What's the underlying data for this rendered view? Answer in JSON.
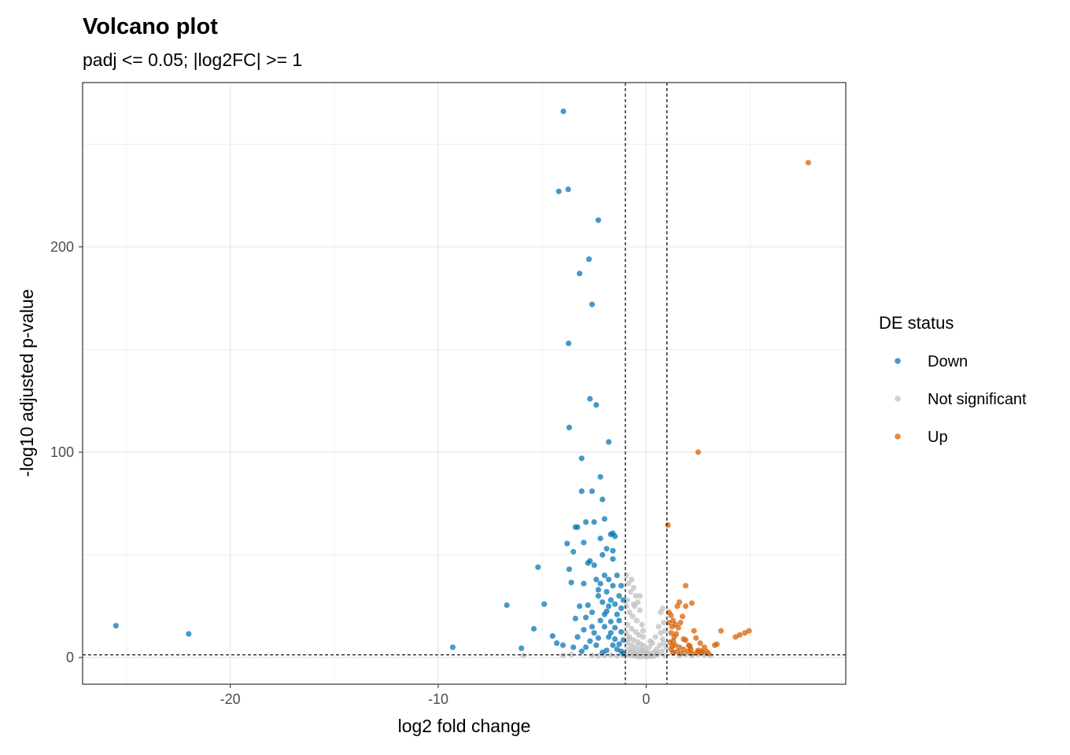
{
  "chart_data": {
    "type": "scatter",
    "title": "Volcano plot",
    "subtitle": "padj <= 0.05; |log2FC| >= 1",
    "xlabel": "log2 fold change",
    "ylabel": "-log10 adjusted p-value",
    "xlim": [
      -27.1,
      9.6
    ],
    "ylim": [
      -13,
      280
    ],
    "x_ticks": [
      -20,
      -10,
      0
    ],
    "x_tick_labels": [
      "-20",
      "-10",
      "0"
    ],
    "y_ticks": [
      0,
      100,
      200
    ],
    "y_tick_labels": [
      "0",
      "100",
      "200"
    ],
    "x_minor_gridlines": [
      -25,
      -15,
      -5,
      5
    ],
    "y_minor_gridlines": [
      50,
      150,
      250
    ],
    "grid": true,
    "reference_lines": {
      "vertical": [
        -1,
        1
      ],
      "horizontal": [
        1.3
      ],
      "style": "dashed",
      "color": "#000000"
    },
    "legend": {
      "title": "DE status",
      "position": "right",
      "entries": [
        {
          "label": "Down",
          "color": "#0072B2"
        },
        {
          "label": "Not significant",
          "color": "#BEBEBE"
        },
        {
          "label": "Up",
          "color": "#D55E00"
        }
      ]
    },
    "series": [
      {
        "name": "Down",
        "color": "#0072B2",
        "points": [
          [
            -25.5,
            15.5
          ],
          [
            -22.0,
            11.5
          ],
          [
            -9.3,
            5.0
          ],
          [
            -6.7,
            25.5
          ],
          [
            -6.0,
            4.5
          ],
          [
            -5.4,
            14.0
          ],
          [
            -5.2,
            44.0
          ],
          [
            -4.9,
            26.0
          ],
          [
            -4.5,
            10.5
          ],
          [
            -4.3,
            7.0
          ],
          [
            -3.98,
            266
          ],
          [
            -3.8,
            55.5
          ],
          [
            -3.7,
            43.0
          ],
          [
            -3.7,
            112
          ],
          [
            -3.73,
            153
          ],
          [
            -3.75,
            228
          ],
          [
            -4.2,
            227
          ],
          [
            -3.6,
            36.5
          ],
          [
            -3.5,
            51.5
          ],
          [
            -3.4,
            63.5
          ],
          [
            -3.3,
            63.5
          ],
          [
            -3.2,
            187
          ],
          [
            -3.1,
            97.0
          ],
          [
            -3.1,
            81.0
          ],
          [
            -3.0,
            56.0
          ],
          [
            -2.9,
            66.0
          ],
          [
            -2.8,
            46.0
          ],
          [
            -2.75,
            194
          ],
          [
            -2.7,
            126
          ],
          [
            -2.6,
            172
          ],
          [
            -2.6,
            81.0
          ],
          [
            -2.5,
            66.0
          ],
          [
            -2.4,
            123
          ],
          [
            -2.3,
            213
          ],
          [
            -2.2,
            88.0
          ],
          [
            -2.2,
            58.0
          ],
          [
            -2.1,
            77.0
          ],
          [
            -2.0,
            67.5
          ],
          [
            -1.9,
            53.0
          ],
          [
            -1.8,
            105
          ],
          [
            -1.7,
            60.0
          ],
          [
            -1.6,
            48.0
          ],
          [
            -1.6,
            60.5
          ],
          [
            -1.5,
            59.0
          ],
          [
            -3.0,
            36.0
          ],
          [
            -2.7,
            47.0
          ],
          [
            -2.5,
            45.0
          ],
          [
            -2.4,
            38.0
          ],
          [
            -2.3,
            30.0
          ],
          [
            -2.2,
            36.0
          ],
          [
            -2.0,
            40.0
          ],
          [
            -1.9,
            32.0
          ],
          [
            -1.8,
            38.0
          ],
          [
            -1.7,
            28.0
          ],
          [
            -1.6,
            35.0
          ],
          [
            -1.5,
            26.0
          ],
          [
            -1.3,
            30.0
          ],
          [
            -1.2,
            24.0
          ],
          [
            -1.1,
            28.0
          ],
          [
            -2.8,
            25.5
          ],
          [
            -2.6,
            22.0
          ],
          [
            -2.9,
            19.5
          ],
          [
            -3.2,
            25.0
          ],
          [
            -3.4,
            19.0
          ],
          [
            -3.0,
            13.5
          ],
          [
            -3.3,
            10.0
          ],
          [
            -2.3,
            33.0
          ],
          [
            -2.1,
            27.0
          ],
          [
            -1.9,
            22.5
          ],
          [
            -1.7,
            17.5
          ],
          [
            -1.5,
            14.5
          ],
          [
            -1.3,
            18.0
          ],
          [
            -1.2,
            12.5
          ],
          [
            -1.1,
            8.5
          ],
          [
            -2.5,
            12.0
          ],
          [
            -2.7,
            8.0
          ],
          [
            -2.4,
            6.0
          ],
          [
            -2.2,
            18.0
          ],
          [
            -2.0,
            15.0
          ],
          [
            -1.8,
            10.0
          ],
          [
            -1.6,
            6.0
          ],
          [
            -1.4,
            4.0
          ],
          [
            -1.2,
            3.0
          ],
          [
            -1.1,
            2.0
          ],
          [
            -2.9,
            5.0
          ],
          [
            -3.1,
            3.0
          ],
          [
            -3.5,
            5.0
          ],
          [
            -4.0,
            6.0
          ],
          [
            -1.9,
            3.5
          ],
          [
            -2.1,
            2.5
          ],
          [
            -1.5,
            9.0
          ],
          [
            -1.3,
            6.5
          ],
          [
            -1.7,
            12.0
          ],
          [
            -2.3,
            9.5
          ],
          [
            -2.6,
            15.0
          ],
          [
            -1.4,
            21.0
          ],
          [
            -1.8,
            25.0
          ],
          [
            -2.0,
            21.0
          ],
          [
            -1.2,
            35.0
          ],
          [
            -1.4,
            40.0
          ],
          [
            -2.1,
            50.0
          ],
          [
            -1.6,
            52.0
          ]
        ]
      },
      {
        "name": "Not significant",
        "color": "#BEBEBE",
        "points": [
          [
            -5.9,
            1.0
          ],
          [
            -4.0,
            1.0
          ],
          [
            -3.6,
            1.5
          ],
          [
            -0.95,
            40.0
          ],
          [
            -0.85,
            36.0
          ],
          [
            -0.7,
            38.0
          ],
          [
            -0.6,
            34.0
          ],
          [
            -0.5,
            30.0
          ],
          [
            -0.75,
            32.0
          ],
          [
            -0.4,
            27.0
          ],
          [
            -0.9,
            28.0
          ],
          [
            -0.55,
            25.0
          ],
          [
            -0.3,
            23.0
          ],
          [
            -0.8,
            22.0
          ],
          [
            -0.65,
            20.0
          ],
          [
            -0.45,
            18.0
          ],
          [
            -0.2,
            16.0
          ],
          [
            -0.9,
            16.0
          ],
          [
            -0.7,
            14.0
          ],
          [
            -0.5,
            12.5
          ],
          [
            -0.35,
            11.0
          ],
          [
            -0.15,
            10.0
          ],
          [
            -0.95,
            12.0
          ],
          [
            -0.8,
            10.0
          ],
          [
            -0.6,
            8.5
          ],
          [
            -0.4,
            7.5
          ],
          [
            -0.25,
            6.5
          ],
          [
            -0.1,
            5.5
          ],
          [
            -0.9,
            7.0
          ],
          [
            -0.7,
            6.0
          ],
          [
            -0.5,
            5.0
          ],
          [
            -0.3,
            4.0
          ],
          [
            -0.15,
            3.5
          ],
          [
            0.0,
            3.0
          ],
          [
            -0.85,
            4.0
          ],
          [
            -0.65,
            3.5
          ],
          [
            -0.45,
            2.5
          ],
          [
            -0.2,
            2.0
          ],
          [
            0.1,
            2.0
          ],
          [
            -0.75,
            2.5
          ],
          [
            -0.55,
            1.5
          ],
          [
            -0.35,
            1.0
          ],
          [
            0.0,
            1.0
          ],
          [
            0.2,
            1.5
          ],
          [
            0.35,
            2.5
          ],
          [
            0.5,
            4.0
          ],
          [
            0.65,
            6.0
          ],
          [
            0.8,
            9.0
          ],
          [
            0.9,
            13.0
          ],
          [
            0.85,
            17.0
          ],
          [
            0.7,
            22.0
          ],
          [
            0.8,
            24.0
          ],
          [
            0.6,
            15.0
          ],
          [
            0.45,
            10.0
          ],
          [
            0.3,
            7.0
          ],
          [
            0.15,
            5.0
          ],
          [
            0.95,
            5.0
          ],
          [
            0.75,
            3.0
          ],
          [
            0.55,
            1.5
          ],
          [
            0.4,
            0.8
          ],
          [
            0.25,
            0.5
          ],
          [
            0.05,
            0.4
          ],
          [
            -0.1,
            0.6
          ],
          [
            -0.3,
            0.3
          ],
          [
            -0.5,
            0.6
          ],
          [
            -0.7,
            0.9
          ],
          [
            -0.9,
            1.2
          ],
          [
            0.9,
            1.0
          ],
          [
            1.3,
            2.0
          ],
          [
            1.6,
            1.0
          ],
          [
            1.9,
            1.5
          ],
          [
            2.2,
            1.0
          ],
          [
            2.5,
            1.5
          ],
          [
            2.8,
            1.2
          ],
          [
            3.1,
            1.0
          ],
          [
            -1.1,
            1.0
          ],
          [
            -1.4,
            0.8
          ],
          [
            -1.7,
            1.2
          ],
          [
            -2.0,
            1.0
          ],
          [
            -2.3,
            0.8
          ],
          [
            -2.6,
            1.1
          ],
          [
            -0.95,
            25.0
          ],
          [
            -0.6,
            26.0
          ],
          [
            -0.3,
            30.0
          ],
          [
            0.7,
            12.0
          ],
          [
            0.85,
            7.0
          ],
          [
            -0.85,
            9.0
          ],
          [
            -0.15,
            13.0
          ],
          [
            0.2,
            8.0
          ],
          [
            0.5,
            2.0
          ]
        ]
      },
      {
        "name": "Up",
        "color": "#D55E00",
        "points": [
          [
            7.8,
            241
          ],
          [
            2.5,
            100
          ],
          [
            1.05,
            64.5
          ],
          [
            1.9,
            35.0
          ],
          [
            1.6,
            27.0
          ],
          [
            2.2,
            26.5
          ],
          [
            1.5,
            25.0
          ],
          [
            1.9,
            25.0
          ],
          [
            1.1,
            22.0
          ],
          [
            1.3,
            18.0
          ],
          [
            1.25,
            15.0
          ],
          [
            1.2,
            12.0
          ],
          [
            1.35,
            10.0
          ],
          [
            1.3,
            8.0
          ],
          [
            1.4,
            6.0
          ],
          [
            1.2,
            4.0
          ],
          [
            1.3,
            2.5
          ],
          [
            1.5,
            3.0
          ],
          [
            1.6,
            5.0
          ],
          [
            1.7,
            2.0
          ],
          [
            1.8,
            4.0
          ],
          [
            1.9,
            8.5
          ],
          [
            2.0,
            3.0
          ],
          [
            2.1,
            5.5
          ],
          [
            2.2,
            2.0
          ],
          [
            2.3,
            13.0
          ],
          [
            2.4,
            9.5
          ],
          [
            2.5,
            3.5
          ],
          [
            2.6,
            7.0
          ],
          [
            2.7,
            2.5
          ],
          [
            2.8,
            5.0
          ],
          [
            2.9,
            3.0
          ],
          [
            3.0,
            2.0
          ],
          [
            3.3,
            6.0
          ],
          [
            3.4,
            6.5
          ],
          [
            3.6,
            13.0
          ],
          [
            4.3,
            10.0
          ],
          [
            4.5,
            11.0
          ],
          [
            4.75,
            12.0
          ],
          [
            4.95,
            13.0
          ],
          [
            1.15,
            7.5
          ],
          [
            1.45,
            11.5
          ],
          [
            1.55,
            14.5
          ],
          [
            1.65,
            17.0
          ],
          [
            1.75,
            20.0
          ],
          [
            1.1,
            17.0
          ],
          [
            1.2,
            20.5
          ],
          [
            2.05,
            6.0
          ],
          [
            1.4,
            16.0
          ],
          [
            1.25,
            5.5
          ],
          [
            1.8,
            9.0
          ],
          [
            2.15,
            4.0
          ],
          [
            2.45,
            2.5
          ],
          [
            2.65,
            3.2
          ]
        ]
      }
    ]
  }
}
